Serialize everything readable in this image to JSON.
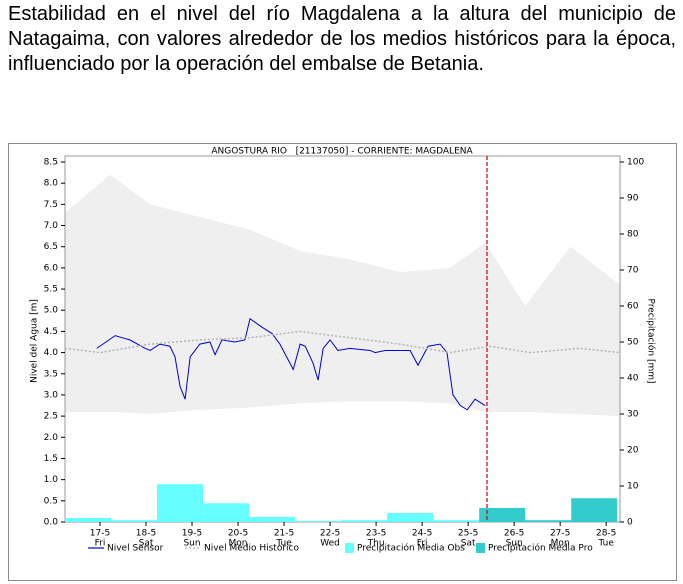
{
  "paragraph": "Estabilidad en el nivel del río Magdalena a la altura del municipio de Natagaima, con valores alrededor de los medios históricos para la época, influenciado por la operación del embalse de Betania.",
  "chart_data": {
    "type": "line",
    "title": "ANGOSTURA RIO   [21137050] - CORRIENTE: MAGDALENA",
    "ylabel": "Nivel del Agua [m]",
    "y2label": "Precipitación [mm]",
    "xlim": [
      -0.76,
      11.3
    ],
    "xticks": [
      {
        "value": 0,
        "label": "17-5"
      },
      {
        "value": 1,
        "label": "18-5"
      },
      {
        "value": 2,
        "label": "19-5"
      },
      {
        "value": 3,
        "label": "20-5"
      },
      {
        "value": 4,
        "label": "21-5"
      },
      {
        "value": 5,
        "label": "22-5"
      },
      {
        "value": 6,
        "label": "23-5"
      },
      {
        "value": 7,
        "label": "24-5"
      },
      {
        "value": 8,
        "label": "25-5"
      },
      {
        "value": 9,
        "label": "26-5"
      },
      {
        "value": 10,
        "label": "27-5"
      },
      {
        "value": 11,
        "label": "28-5"
      }
    ],
    "xtick_days": [
      "Fri",
      "Sat",
      "Sun",
      "Mon",
      "Tue",
      "Wed",
      "Thu",
      "Fri",
      "Sat",
      "Sun",
      "Mon",
      "Tue"
    ],
    "ylim": [
      0,
      8.5
    ],
    "yticks": [
      {
        "value": 0,
        "label": "0.0"
      },
      0.5,
      {
        "value": 1,
        "label": "1.0"
      },
      1.5,
      {
        "value": 2,
        "label": "2.0"
      },
      2.5,
      {
        "value": 3,
        "label": "3.0"
      },
      3.5,
      {
        "value": 4,
        "label": "4.0"
      },
      4.5,
      {
        "value": 5,
        "label": "5.0"
      },
      5.5,
      {
        "value": 6,
        "label": "6.0"
      },
      6.5,
      {
        "value": 7,
        "label": "7.0"
      },
      7.5,
      {
        "value": 8,
        "label": "8.0"
      },
      8.5
    ],
    "y2lim": [
      0,
      100
    ],
    "y2ticks": [
      0,
      10,
      20,
      30,
      40,
      50,
      60,
      70,
      80,
      90,
      100
    ],
    "band": {
      "color": "#efefef",
      "x": [
        -0.76,
        0.22,
        1.09,
        2.17,
        3.26,
        4.35,
        5.43,
        6.52,
        7.61,
        8.37,
        9.24,
        10.22,
        11.3
      ],
      "upper": [
        7.3,
        8.2,
        7.5,
        7.2,
        6.9,
        6.4,
        6.2,
        5.9,
        6.0,
        6.6,
        5.1,
        6.5,
        5.6
      ],
      "lower": [
        2.6,
        2.6,
        2.55,
        2.65,
        2.7,
        2.8,
        2.85,
        2.85,
        2.8,
        2.6,
        2.6,
        2.55,
        2.5
      ]
    },
    "forecast_start_x": 8.41,
    "forecast_color": "#cc0000",
    "series": [
      {
        "name": "Nivel Sensor",
        "type": "line",
        "color": "#0000cc",
        "x": [
          -0.07,
          0.33,
          0.65,
          0.98,
          1.09,
          1.3,
          1.52,
          1.63,
          1.74,
          1.85,
          1.96,
          2.17,
          2.39,
          2.5,
          2.65,
          2.93,
          3.15,
          3.26,
          3.52,
          3.74,
          3.91,
          4.2,
          4.35,
          4.46,
          4.63,
          4.74,
          4.85,
          5.0,
          5.17,
          5.43,
          5.87,
          5.98,
          6.2,
          6.74,
          6.91,
          7.13,
          7.39,
          7.54,
          7.67,
          7.83,
          7.98,
          8.15,
          8.37
        ],
        "values": [
          4.1,
          4.4,
          4.3,
          4.1,
          4.05,
          4.2,
          4.15,
          3.9,
          3.2,
          2.9,
          3.9,
          4.2,
          4.25,
          3.95,
          4.3,
          4.25,
          4.3,
          4.8,
          4.6,
          4.45,
          4.2,
          3.6,
          4.2,
          4.15,
          3.75,
          3.35,
          4.1,
          4.3,
          4.05,
          4.1,
          4.05,
          4.0,
          4.05,
          4.05,
          3.7,
          4.15,
          4.2,
          4.0,
          3.0,
          2.75,
          2.65,
          2.9,
          2.75
        ]
      },
      {
        "name": "Nivel Medio Historico",
        "type": "line",
        "dashed": true,
        "color": "#b4b4b4",
        "x": [
          -0.76,
          0,
          1.09,
          2.17,
          3.26,
          4.35,
          5.43,
          6.52,
          7.61,
          8.48,
          9.35,
          10.43,
          11.3
        ],
        "values": [
          4.1,
          4.0,
          4.2,
          4.3,
          4.35,
          4.5,
          4.35,
          4.2,
          4.0,
          4.15,
          4.0,
          4.1,
          4.0
        ]
      },
      {
        "name": "Precipitación Media Obs",
        "type": "bar",
        "axis": "y2",
        "color": "#66ffff",
        "x": [
          -0.26,
          0.74,
          1.74,
          2.74,
          3.74,
          4.74,
          5.74,
          6.74,
          7.74
        ],
        "values": [
          1.1,
          0.5,
          10.5,
          5.2,
          1.4,
          0.3,
          0.5,
          2.5,
          0.5
        ]
      },
      {
        "name": "Precipitación Media Pro",
        "type": "bar",
        "axis": "y2",
        "color": "#33cccc",
        "x": [
          8.74,
          9.74,
          10.74
        ],
        "values": [
          3.9,
          0.5,
          6.6
        ]
      }
    ]
  }
}
